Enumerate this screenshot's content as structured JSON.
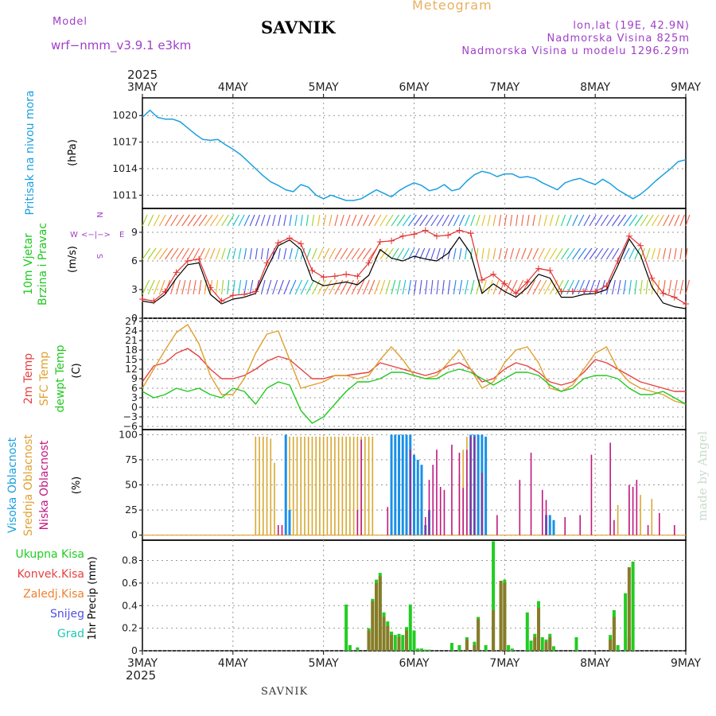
{
  "header": {
    "model_label": "Model",
    "model_name": "wrf−nmm_v3.9.1  e3km",
    "title": "SAVNIK",
    "meteogram_label": "Meteogram",
    "lonlat": "lon,lat (19E, 42.9N)",
    "elevation": "Nadmorska Visina 825m",
    "model_elevation": "Nadmorska Visina u modelu 1296.29m",
    "footer_site": "SAVNIK",
    "watermark": "made by Angel"
  },
  "time_axis": {
    "year": "2025",
    "ticks": [
      "3MAY",
      "4MAY",
      "5MAY",
      "6MAY",
      "7MAY",
      "8MAY",
      "9MAY"
    ]
  },
  "compass": {
    "north": "N",
    "south": "S",
    "west": "W",
    "east": "E",
    "arrows": "<−|−>"
  },
  "colors": {
    "pressure": "#1aa0e0",
    "temp2m": "#e84040",
    "sfc": "#e0a030",
    "dewpt": "#20c820",
    "wind_line": "#000000",
    "wind_marker": "#e03030"
  },
  "chart_data": [
    {
      "type": "line",
      "title": "Pritisak na nivou mora",
      "ylabel": "Pritisak na nivou mora",
      "unit": "(hPa)",
      "ylim": [
        1009.5,
        1022
      ],
      "yticks": [
        1011,
        1014,
        1017,
        1020
      ],
      "ytick_labels": [
        "1011",
        "1014",
        "1017",
        "1020"
      ],
      "x_hours": [
        0,
        2,
        4,
        6,
        8,
        10,
        12,
        14,
        16,
        18,
        20,
        22,
        24,
        26,
        28,
        30,
        32,
        34,
        36,
        38,
        40,
        42,
        44,
        46,
        48,
        50,
        52,
        54,
        56,
        58,
        60,
        62,
        64,
        66,
        68,
        70,
        72,
        74,
        76,
        78,
        80,
        82,
        84,
        86,
        88,
        90,
        92,
        94,
        96,
        98,
        100,
        102,
        104,
        106,
        108,
        110,
        112,
        114,
        116,
        118,
        120,
        122,
        124,
        126,
        128,
        130,
        132,
        134,
        136,
        138,
        140,
        142,
        144
      ],
      "values": [
        1019.8,
        1020.6,
        1019.8,
        1019.6,
        1019.6,
        1019.3,
        1018.6,
        1017.9,
        1017.3,
        1017.2,
        1017.3,
        1016.7,
        1016.2,
        1015.6,
        1014.8,
        1014.0,
        1013.2,
        1012.5,
        1012.1,
        1011.6,
        1011.4,
        1012.2,
        1011.9,
        1011.0,
        1010.6,
        1011.0,
        1010.7,
        1010.4,
        1010.4,
        1010.6,
        1011.1,
        1011.6,
        1011.2,
        1010.8,
        1011.5,
        1012.0,
        1012.4,
        1012.1,
        1011.5,
        1011.7,
        1012.2,
        1011.5,
        1011.7,
        1012.6,
        1013.3,
        1013.7,
        1013.5,
        1013.1,
        1013.4,
        1013.4,
        1013.0,
        1013.1,
        1012.9,
        1012.4,
        1012.0,
        1011.6,
        1012.4,
        1012.7,
        1012.9,
        1012.5,
        1012.2,
        1012.8,
        1012.3,
        1011.6,
        1011.1,
        1010.6,
        1011.1,
        1011.8,
        1012.6,
        1013.3,
        1014.0,
        1014.8,
        1015.0
      ]
    },
    {
      "type": "line",
      "title": "10m Vjetar Brzina i Pravac",
      "ylabel": "10m Vjetar Brzina i Pravac",
      "unit": "(m/s)",
      "ylim": [
        0,
        11.5
      ],
      "yticks": [
        0,
        3,
        6,
        9
      ],
      "ytick_labels": [
        "0",
        "3",
        "6",
        "9"
      ],
      "x_hours": [
        0,
        3,
        6,
        9,
        12,
        15,
        18,
        21,
        24,
        27,
        30,
        33,
        36,
        39,
        42,
        45,
        48,
        51,
        54,
        57,
        60,
        63,
        66,
        69,
        72,
        75,
        78,
        81,
        84,
        87,
        90,
        93,
        96,
        99,
        102,
        105,
        108,
        111,
        114,
        117,
        120,
        123,
        126,
        129,
        132,
        135,
        138,
        141,
        144
      ],
      "speed_mean": [
        1.8,
        1.6,
        2.5,
        4.2,
        5.6,
        5.8,
        2.5,
        1.5,
        2.0,
        2.2,
        2.6,
        5.2,
        7.6,
        8.2,
        7.2,
        4.0,
        3.4,
        3.6,
        3.8,
        3.5,
        4.5,
        7.2,
        6.3,
        6.0,
        6.5,
        6.2,
        6.0,
        6.8,
        8.5,
        6.8,
        2.6,
        3.6,
        2.8,
        2.2,
        3.2,
        4.6,
        4.2,
        2.2,
        2.2,
        2.5,
        2.6,
        3.0,
        5.5,
        8.3,
        6.6,
        3.3,
        1.6,
        1.2,
        1.0
      ],
      "speed_max": [
        2.0,
        1.8,
        2.8,
        4.8,
        6.0,
        6.2,
        3.2,
        1.8,
        2.4,
        2.5,
        2.8,
        5.8,
        7.9,
        8.4,
        7.8,
        5.0,
        4.3,
        4.4,
        4.6,
        4.4,
        5.8,
        8.0,
        8.1,
        8.6,
        8.8,
        9.2,
        8.6,
        8.7,
        9.2,
        8.9,
        4.0,
        4.6,
        3.6,
        2.6,
        3.8,
        5.2,
        5.0,
        2.8,
        2.8,
        2.8,
        2.8,
        3.4,
        6.0,
        8.6,
        7.6,
        4.2,
        2.6,
        2.2,
        1.5
      ]
    },
    {
      "type": "line",
      "title": "2m Temp / SFC Temp / dewpt Temp",
      "ylabel": "2m Temp SFC Temp dewpt Temp",
      "unit": "(C)",
      "ylim": [
        -7,
        28
      ],
      "yticks": [
        -6,
        -3,
        0,
        3,
        6,
        9,
        12,
        15,
        18,
        21,
        24,
        27
      ],
      "ytick_labels": [
        "−6",
        "−3",
        "0",
        "3",
        "6",
        "9",
        "12",
        "15",
        "18",
        "21",
        "24",
        "27"
      ],
      "x_hours": [
        0,
        3,
        6,
        9,
        12,
        15,
        18,
        21,
        24,
        27,
        30,
        33,
        36,
        39,
        42,
        45,
        48,
        51,
        54,
        57,
        60,
        63,
        66,
        69,
        72,
        75,
        78,
        81,
        84,
        87,
        90,
        93,
        96,
        99,
        102,
        105,
        108,
        111,
        114,
        117,
        120,
        123,
        126,
        129,
        132,
        135,
        138,
        141,
        144
      ],
      "series": [
        {
          "name": "2m Temp",
          "values": [
            8,
            13,
            14,
            17,
            18.5,
            16,
            12,
            9,
            9,
            10,
            12,
            14.5,
            16,
            15,
            12,
            9,
            9,
            10,
            10,
            10.5,
            11,
            14,
            13,
            12,
            11,
            10,
            11,
            13,
            14,
            12,
            8,
            9,
            12,
            14,
            13,
            11,
            8,
            7,
            8,
            11,
            15,
            14,
            12,
            10,
            8,
            7,
            6,
            5,
            5
          ]
        },
        {
          "name": "SFC Temp",
          "values": [
            6,
            12,
            18,
            23.5,
            26,
            20,
            10,
            4,
            4,
            9,
            17,
            23,
            24,
            15,
            6,
            7,
            8,
            10,
            10,
            9,
            10,
            15,
            19,
            15,
            10,
            9,
            10,
            14,
            18,
            12,
            6,
            8,
            14,
            18,
            19,
            14,
            6,
            5,
            7,
            12,
            17,
            19,
            12,
            8,
            6,
            5,
            4,
            2,
            1
          ]
        },
        {
          "name": "dewpt Temp",
          "values": [
            5,
            3,
            4,
            6,
            5,
            6,
            4,
            3,
            6,
            5,
            1,
            6,
            8,
            7,
            -1,
            -5,
            -3,
            1,
            5,
            8,
            8,
            9,
            11,
            11,
            10,
            9,
            9,
            11,
            12,
            11,
            9,
            7,
            9,
            11,
            11,
            10,
            7,
            5,
            6,
            9,
            10,
            10,
            9,
            6,
            4,
            4,
            5,
            3,
            1
          ]
        }
      ]
    },
    {
      "type": "bar",
      "title": "Visoka / Srednja / Niska Oblacnost",
      "ylabel": "Visoka Oblacnost Srednja Oblacnost Niska Oblacnost",
      "unit": "(%)",
      "ylim": [
        -5,
        105
      ],
      "yticks": [
        0,
        25,
        50,
        75,
        100
      ],
      "ytick_labels": [
        "0",
        "25",
        "50",
        "75",
        "100"
      ],
      "series": [
        {
          "name": "Srednja Oblacnost",
          "x_hours": [
            30,
            31,
            32,
            33,
            34,
            35,
            38,
            39,
            40,
            41,
            42,
            43,
            44,
            45,
            46,
            47,
            48,
            49,
            50,
            51,
            52,
            53,
            54,
            55,
            56,
            57,
            58,
            59,
            60,
            61,
            84,
            85,
            86,
            87,
            88,
            89,
            90,
            91,
            126,
            129,
            132,
            135
          ],
          "values": [
            98,
            98,
            98,
            98,
            96,
            72,
            98,
            98,
            98,
            98,
            98,
            98,
            98,
            98,
            98,
            98,
            98,
            98,
            98,
            98,
            98,
            98,
            98,
            98,
            98,
            98,
            98,
            98,
            98,
            98,
            60,
            85,
            98,
            98,
            98,
            98,
            98,
            98,
            30,
            44,
            40,
            36
          ]
        },
        {
          "name": "Visoka Oblacnost",
          "x_hours": [
            38,
            39,
            66,
            67,
            68,
            69,
            70,
            71,
            72,
            73,
            74,
            75,
            76,
            87,
            88,
            89,
            90,
            91,
            107,
            108,
            109
          ],
          "values": [
            100,
            25,
            100,
            100,
            100,
            100,
            100,
            100,
            80,
            75,
            70,
            10,
            25,
            100,
            100,
            100,
            100,
            98,
            20,
            20,
            15
          ]
        },
        {
          "name": "Niska Oblacnost",
          "x_hours": [
            36,
            37,
            57,
            58,
            65,
            71,
            75,
            76,
            77,
            78,
            79,
            80,
            82,
            84,
            85,
            86,
            87,
            88,
            90,
            94,
            100,
            103,
            106,
            107,
            112,
            116,
            119,
            124,
            125,
            129,
            130,
            131,
            134,
            137,
            141
          ],
          "values": [
            10,
            10,
            25,
            95,
            28,
            85,
            18,
            55,
            70,
            85,
            48,
            45,
            90,
            82,
            47,
            85,
            98,
            98,
            62,
            20,
            55,
            82,
            45,
            35,
            18,
            20,
            80,
            92,
            15,
            50,
            48,
            55,
            10,
            22,
            10
          ]
        }
      ]
    },
    {
      "type": "bar",
      "title": "1hr Precip",
      "ylabel": "1hr Precip",
      "unit": "(mm)",
      "ylim": [
        0,
        0.98
      ],
      "yticks": [
        0,
        0.2,
        0.4,
        0.6,
        0.8
      ],
      "ytick_labels": [
        "0",
        "0.2",
        "0.4",
        "0.6",
        "0.8"
      ],
      "legend": [
        "Ukupna Kisa",
        "Konvek.Kisa",
        "Zaledj.Kisa",
        "Snijeg",
        "Grad"
      ],
      "series": [
        {
          "name": "Ukupna Kisa",
          "x_hours": [
            54,
            55,
            57,
            60,
            61,
            62,
            63,
            64,
            65,
            66,
            67,
            68,
            69,
            70,
            71,
            72,
            73,
            74,
            75,
            76,
            82,
            84,
            86,
            88,
            89,
            91,
            93,
            95,
            96,
            97,
            98,
            102,
            103,
            104,
            105,
            106,
            107,
            108,
            109,
            115,
            124,
            125,
            126,
            128,
            129,
            130
          ],
          "values": [
            0.41,
            0.05,
            0.03,
            0.2,
            0.46,
            0.63,
            0.69,
            0.34,
            0.26,
            0.17,
            0.14,
            0.15,
            0.14,
            0.21,
            0.41,
            0.18,
            0.02,
            0.02,
            0.01,
            0.01,
            0.07,
            0.05,
            0.12,
            0.08,
            0.3,
            0.05,
            0.97,
            0.62,
            0.63,
            0.05,
            0.02,
            0.34,
            0.09,
            0.15,
            0.44,
            0.12,
            0.1,
            0.15,
            0.04,
            0.12,
            0.14,
            0.36,
            0.05,
            0.51,
            0.12,
            0.79
          ]
        },
        {
          "name": "Konvek.Kisa",
          "x_hours": [
            60,
            61,
            62,
            63,
            64,
            65,
            66,
            68,
            70,
            86,
            88,
            89,
            93,
            95,
            96,
            104,
            105,
            107,
            108,
            124,
            125,
            129
          ],
          "values": [
            0.18,
            0.44,
            0.6,
            0.66,
            0.3,
            0.22,
            0.14,
            0.12,
            0.18,
            0.1,
            0.05,
            0.28,
            0.36,
            0.62,
            0.6,
            0.12,
            0.38,
            0.08,
            0.12,
            0.1,
            0.3,
            0.74
          ]
        }
      ]
    }
  ]
}
